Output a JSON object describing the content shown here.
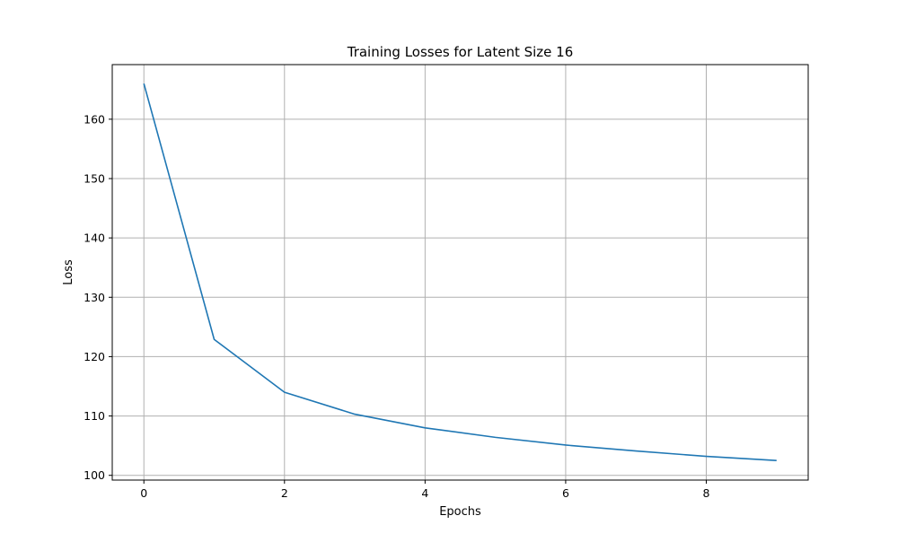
{
  "chart_data": {
    "type": "line",
    "title": "Training Losses for Latent Size 16",
    "xlabel": "Epochs",
    "ylabel": "Loss",
    "xlim": [
      -0.45,
      9.45
    ],
    "ylim": [
      99.2,
      169.2
    ],
    "xticks": [
      0,
      2,
      4,
      6,
      8
    ],
    "xtick_labels": [
      "0",
      "2",
      "4",
      "6",
      "8"
    ],
    "yticks": [
      100,
      110,
      120,
      130,
      140,
      150,
      160
    ],
    "ytick_labels": [
      "100",
      "110",
      "120",
      "130",
      "140",
      "150",
      "160"
    ],
    "grid": true,
    "series": [
      {
        "color": "#1f77b4",
        "x": [
          0,
          1,
          2,
          3,
          4,
          5,
          6,
          7,
          8,
          9
        ],
        "y": [
          166.0,
          122.9,
          114.0,
          110.3,
          108.0,
          106.4,
          105.1,
          104.1,
          103.2,
          102.5
        ]
      }
    ]
  }
}
